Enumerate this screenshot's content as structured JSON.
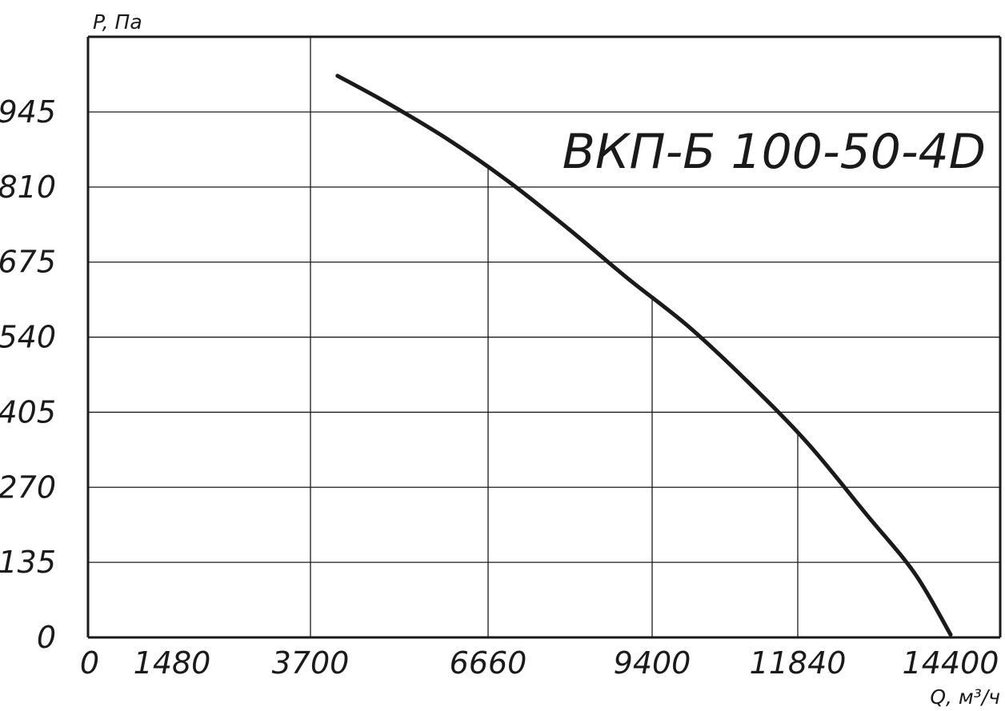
{
  "chart_data": {
    "type": "line",
    "title": "ВКП-Б 100-50-4D",
    "xlabel": "Q, м³/ч",
    "ylabel": "P, Па",
    "x_ticks": [
      0,
      1480,
      3700,
      6660,
      9400,
      11840,
      14400
    ],
    "x_tick_labels": [
      "0",
      "1480",
      "3700",
      "6660",
      "9400",
      "11840",
      "14400"
    ],
    "y_ticks": [
      0,
      135,
      270,
      405,
      540,
      675,
      810,
      945
    ],
    "y_tick_labels": [
      "0",
      "135",
      "270",
      "405",
      "540",
      "675",
      "810",
      "945"
    ],
    "xlim": [
      0,
      14400
    ],
    "ylim": [
      0,
      1080
    ],
    "grid": true,
    "series": [
      {
        "x": [
          4150,
          5000,
          6000,
          7000,
          8000,
          9000,
          10000,
          11000,
          12000,
          13000,
          13800,
          14400
        ],
        "y": [
          1010,
          960,
          895,
          820,
          735,
          645,
          560,
          460,
          350,
          220,
          115,
          5
        ],
        "color": "#1a1a1a"
      }
    ]
  }
}
